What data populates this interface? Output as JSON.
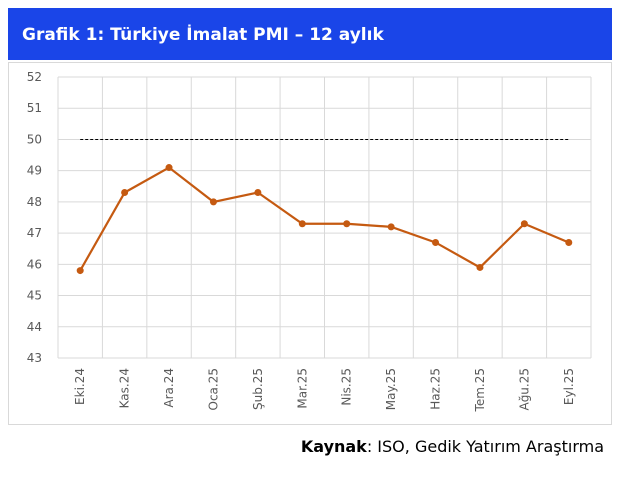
{
  "chart_data": {
    "type": "line",
    "title": "Grafik 1: Türkiye İmalat PMI – 12 aylık",
    "categories": [
      "Eki.24",
      "Kas.24",
      "Ara.24",
      "Oca.25",
      "Şub.25",
      "Mar.25",
      "Nis.25",
      "May.25",
      "Haz.25",
      "Tem.25",
      "Ağu.25",
      "Eyl.25"
    ],
    "series": [
      {
        "name": "PMI",
        "color": "#c55a11",
        "values": [
          45.8,
          48.3,
          49.1,
          48.0,
          48.3,
          47.3,
          47.3,
          47.2,
          46.7,
          45.9,
          47.3,
          46.7
        ]
      }
    ],
    "ylim": [
      43,
      52
    ],
    "yticks": [
      43,
      44,
      45,
      46,
      47,
      48,
      49,
      50,
      51,
      52
    ],
    "grid": true,
    "reference_line": 50,
    "source_label": "Kaynak",
    "source_text": ": ISO, Gedik Yatırım Araştırma"
  }
}
